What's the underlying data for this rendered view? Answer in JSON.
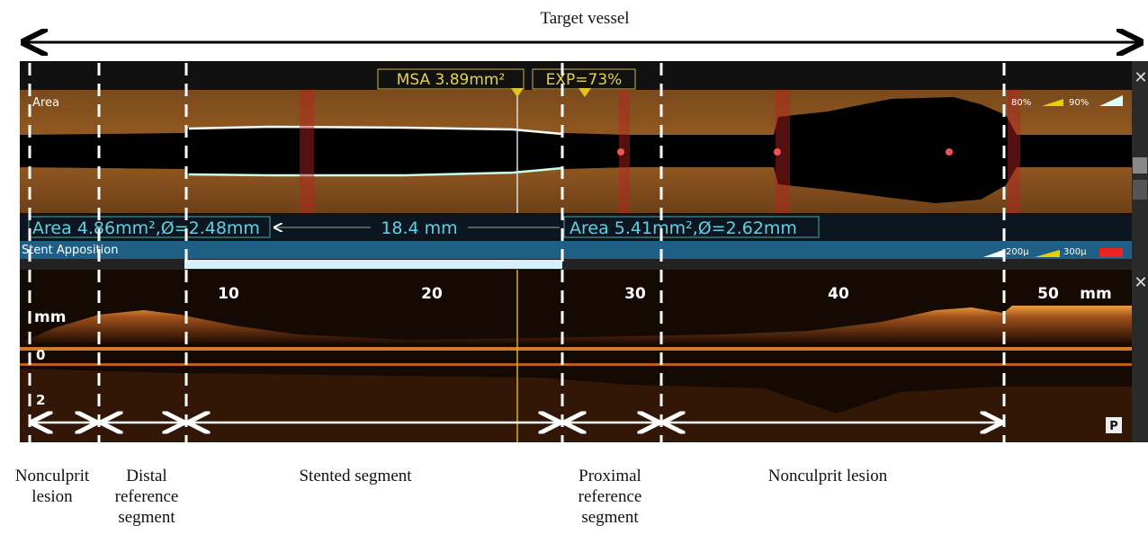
{
  "header": {
    "title": "Target vessel"
  },
  "area_panel": {
    "label": "Area",
    "msa": "MSA 3.89mm²",
    "expansion": "EXP=73%",
    "legend": [
      "80%",
      "90%"
    ]
  },
  "measurements": {
    "distal": "Area 4.86mm²,Ø=2.48mm",
    "length": "18.4 mm",
    "proximal": "Area 5.41mm²,Ø=2.62mm"
  },
  "apposition_panel": {
    "label": "Stent Apposition",
    "legend": [
      "200µ",
      "300µ"
    ]
  },
  "longitudinal_view": {
    "depth_unit": "mm",
    "depth_ticks": [
      "0",
      "2"
    ],
    "length_ticks": [
      "10",
      "20",
      "30",
      "40",
      "50"
    ],
    "length_unit": "mm",
    "button": "P"
  },
  "segments": [
    {
      "label": "Nonculprit lesion"
    },
    {
      "label": "Distal reference segment"
    },
    {
      "label": "Stented segment"
    },
    {
      "label": "Proximal reference segment"
    },
    {
      "label": "Nonculprit lesion"
    }
  ]
}
